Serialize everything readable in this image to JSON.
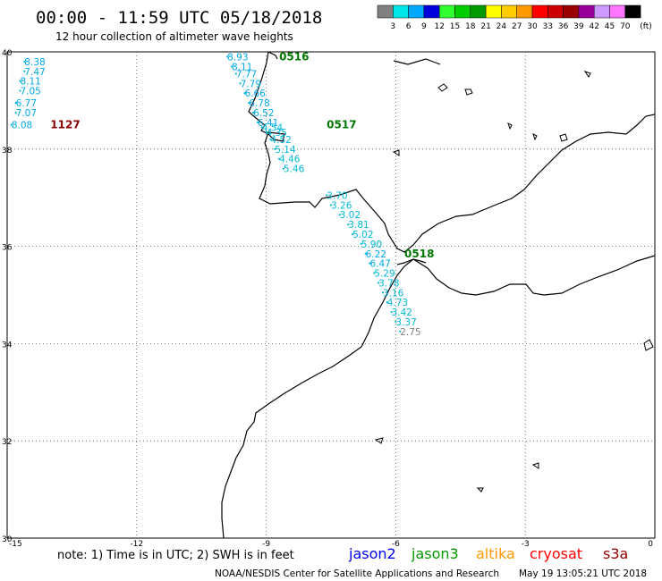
{
  "header": {
    "title": "00:00 - 11:59 UTC 05/18/2018",
    "subtitle": "12 hour collection of altimeter wave heights"
  },
  "color_scale": {
    "labels": [
      "3",
      "6",
      "9",
      "12",
      "15",
      "18",
      "21",
      "24",
      "27",
      "30",
      "33",
      "36",
      "39",
      "42",
      "45",
      "70"
    ],
    "unit": "(ft)",
    "colors": [
      "#808080",
      "#00e5e5",
      "#00a8ff",
      "#0000dd",
      "#30ff30",
      "#00cc00",
      "#009900",
      "#ffff00",
      "#ffcc00",
      "#ff9900",
      "#ff0000",
      "#cc0000",
      "#990000",
      "#990099",
      "#cc99ff",
      "#ff77ff",
      "#000000"
    ]
  },
  "axes": {
    "lat_labels": [
      "40",
      "38",
      "36",
      "34",
      "32",
      "30"
    ],
    "lon_labels": [
      "-15",
      "-12",
      "-9",
      "-6",
      "-3",
      "0"
    ],
    "lat_values": [
      40,
      38,
      36,
      34,
      32,
      30
    ],
    "lon_values": [
      -15,
      -12,
      -9,
      -6,
      -3,
      0
    ]
  },
  "tracks": [
    {
      "id": "track-1127",
      "label": "1127",
      "label_color": "#880000",
      "label_pos": {
        "lon": -14.0,
        "lat": 38.5
      },
      "readings": [
        {
          "lon": -14.6,
          "lat": 39.8,
          "value": "8.38"
        },
        {
          "lon": -14.6,
          "lat": 39.6,
          "value": "7.47"
        },
        {
          "lon": -14.7,
          "lat": 39.4,
          "value": "8.11"
        },
        {
          "lon": -14.7,
          "lat": 39.2,
          "value": "7.05"
        },
        {
          "lon": -14.8,
          "lat": 38.95,
          "value": "6.77"
        },
        {
          "lon": -14.8,
          "lat": 38.75,
          "value": "7.07"
        },
        {
          "lon": -14.9,
          "lat": 38.5,
          "value": "8.08"
        }
      ]
    },
    {
      "id": "track-0516",
      "label": "0516",
      "label_color": "#007700",
      "label_pos": {
        "lon": -8.7,
        "lat": 39.9
      },
      "readings": [
        {
          "lon": -9.9,
          "lat": 39.9,
          "value": "8.93"
        },
        {
          "lon": -9.8,
          "lat": 39.7,
          "value": "8.11"
        },
        {
          "lon": -9.7,
          "lat": 39.55,
          "value": "7.77"
        },
        {
          "lon": -9.6,
          "lat": 39.35,
          "value": "7.79"
        },
        {
          "lon": -9.5,
          "lat": 39.15,
          "value": "6.66"
        },
        {
          "lon": -9.4,
          "lat": 38.95,
          "value": "6.78"
        },
        {
          "lon": -9.3,
          "lat": 38.75,
          "value": "6.52"
        },
        {
          "lon": -9.2,
          "lat": 38.55,
          "value": "6.41"
        }
      ]
    },
    {
      "id": "track-0517",
      "label": "0517",
      "label_color": "#007700",
      "label_pos": {
        "lon": -7.6,
        "lat": 38.5
      },
      "readings": [
        {
          "lon": -9.1,
          "lat": 38.45,
          "value": "4.54"
        },
        {
          "lon": -9.0,
          "lat": 38.35,
          "value": "4.35"
        },
        {
          "lon": -8.9,
          "lat": 38.2,
          "value": "4.52"
        },
        {
          "lon": -8.8,
          "lat": 38.0,
          "value": "5.14"
        },
        {
          "lon": -8.7,
          "lat": 37.8,
          "value": "4.46"
        },
        {
          "lon": -8.6,
          "lat": 37.6,
          "value": "5.46"
        }
      ]
    },
    {
      "id": "track-0518",
      "label": "0518",
      "label_color": "#007700",
      "label_pos": {
        "lon": -5.8,
        "lat": 35.85
      },
      "readings": [
        {
          "lon": -7.6,
          "lat": 37.05,
          "value": "3.70"
        },
        {
          "lon": -7.5,
          "lat": 36.85,
          "value": "3.26"
        },
        {
          "lon": -7.3,
          "lat": 36.65,
          "value": "3.02"
        },
        {
          "lon": -7.1,
          "lat": 36.45,
          "value": "3.81"
        },
        {
          "lon": -7.0,
          "lat": 36.25,
          "value": "5.02"
        },
        {
          "lon": -6.8,
          "lat": 36.05,
          "value": "5.90"
        },
        {
          "lon": -6.7,
          "lat": 35.85,
          "value": "6.22"
        },
        {
          "lon": -6.6,
          "lat": 35.65,
          "value": "6.47"
        },
        {
          "lon": -6.5,
          "lat": 35.45,
          "value": "5.29"
        },
        {
          "lon": -6.4,
          "lat": 35.25,
          "value": "3.78"
        },
        {
          "lon": -6.3,
          "lat": 35.05,
          "value": "3.16"
        },
        {
          "lon": -6.2,
          "lat": 34.85,
          "value": "4.73"
        },
        {
          "lon": -6.1,
          "lat": 34.65,
          "value": "3.42"
        },
        {
          "lon": -6.0,
          "lat": 34.45,
          "value": "3.37"
        },
        {
          "lon": -5.9,
          "lat": 34.25,
          "value": "2.75"
        }
      ]
    }
  ],
  "footer": {
    "note": "note: 1) Time is in UTC; 2) SWH is in feet",
    "satellites": [
      {
        "name": "jason2",
        "color": "#0000ee"
      },
      {
        "name": "jason3",
        "color": "#009900"
      },
      {
        "name": "altika",
        "color": "#ff9900"
      },
      {
        "name": "cryosat",
        "color": "#ff0000"
      },
      {
        "name": "s3a",
        "color": "#990000"
      }
    ],
    "credit": "NOAA/NESDIS Center for Satellite Applications and Research",
    "timestamp": "May 19 13:05:21 UTC 2018"
  }
}
